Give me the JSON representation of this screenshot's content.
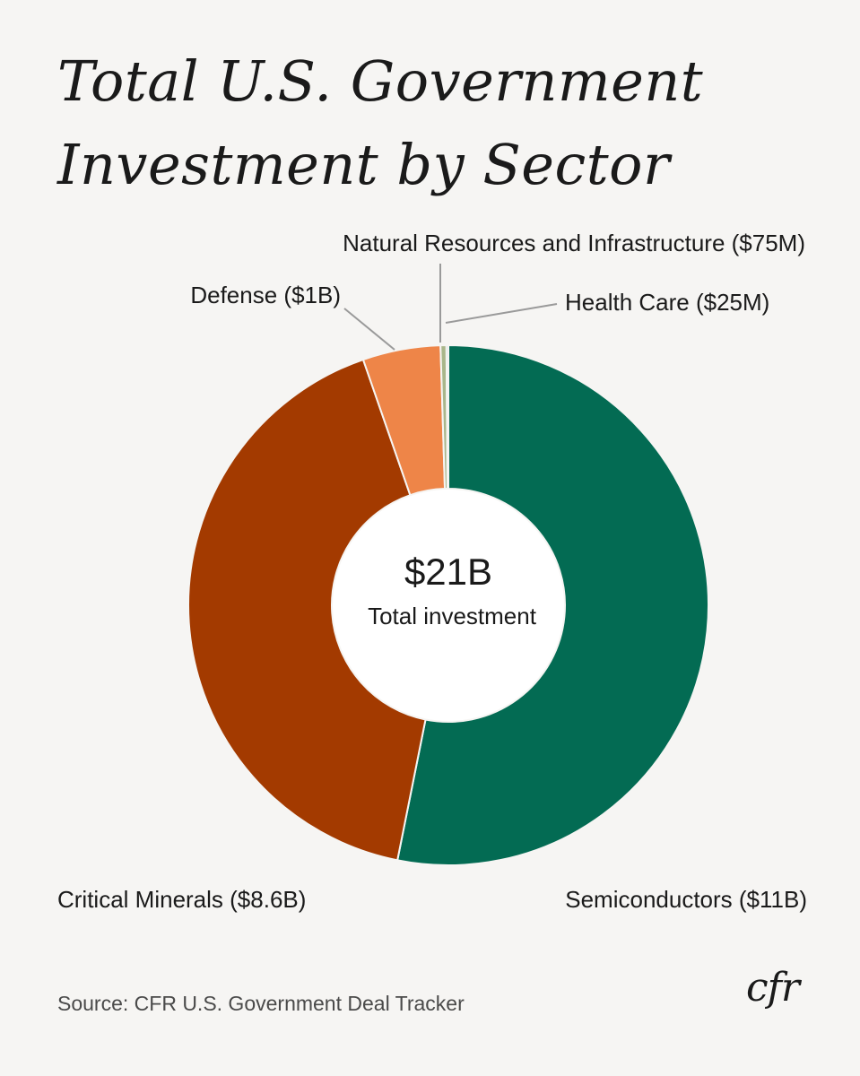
{
  "title_line1": "Total U.S. Government",
  "title_line2": "Investment by Sector",
  "center_value": "$21B",
  "center_label": "Total investment",
  "source": "Source: CFR U.S. Government Deal Tracker",
  "logo_text": "cfr",
  "chart_data": {
    "type": "pie",
    "variant": "donut",
    "title": "Total U.S. Government Investment by Sector",
    "total": 20.7,
    "unit": "billion USD",
    "slices": [
      {
        "label": "Semiconductors ($11B)",
        "name": "Semiconductors",
        "value": 11.0,
        "color": "#036b53"
      },
      {
        "label": "Critical Minerals ($8.6B)",
        "name": "Critical Minerals",
        "value": 8.6,
        "color": "#a33a00"
      },
      {
        "label": "Defense ($1B)",
        "name": "Defense",
        "value": 1.0,
        "color": "#ee8548"
      },
      {
        "label": "Natural Resources and Infrastructure ($75M)",
        "name": "Natural Resources and Infrastructure",
        "value": 0.075,
        "color": "#a9b68a"
      },
      {
        "label": "Health Care ($25M)",
        "name": "Health Care",
        "value": 0.025,
        "color": "#7fa8b8"
      }
    ]
  }
}
